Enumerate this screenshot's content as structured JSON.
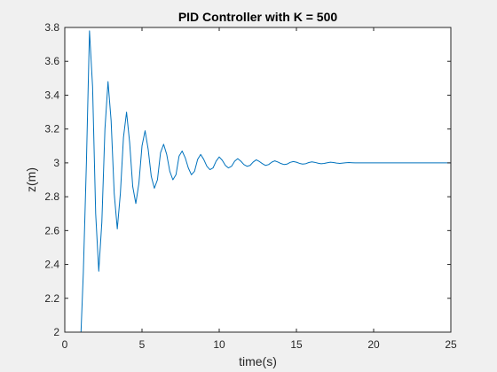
{
  "chart_data": {
    "type": "line",
    "title": "PID Controller with K = 500",
    "xlabel": "time(s)",
    "ylabel": "z(m)",
    "xlim": [
      0,
      25
    ],
    "ylim": [
      2,
      3.8
    ],
    "xticks": [
      "0",
      "5",
      "10",
      "15",
      "20",
      "25"
    ],
    "yticks": [
      "2",
      "2.2",
      "2.4",
      "2.6",
      "2.8",
      "3",
      "3.2",
      "3.4",
      "3.6",
      "3.8"
    ],
    "grid": false,
    "line_color": "#0072BD",
    "background_color": "#f0f0f0",
    "plot_color": "#ffffff",
    "series": [
      {
        "x": [
          0,
          0.2,
          0.4,
          0.6,
          0.8,
          1.0,
          1.05,
          1.2,
          1.4,
          1.6,
          1.8,
          2.0,
          2.2,
          2.4,
          2.6,
          2.8,
          3.0,
          3.2,
          3.4,
          3.6,
          3.8,
          4.0,
          4.2,
          4.4,
          4.6,
          4.8,
          5.0,
          5.2,
          5.4,
          5.6,
          5.8,
          6.0,
          6.2,
          6.4,
          6.6,
          6.8,
          7.0,
          7.2,
          7.4,
          7.6,
          7.8,
          8.0,
          8.2,
          8.4,
          8.6,
          8.8,
          9.0,
          9.2,
          9.4,
          9.6,
          9.8,
          10.0,
          10.2,
          10.4,
          10.6,
          10.8,
          11.0,
          11.2,
          11.4,
          11.6,
          11.8,
          12.0,
          12.2,
          12.4,
          12.6,
          12.8,
          13.0,
          13.2,
          13.4,
          13.6,
          13.8,
          14.0,
          14.2,
          14.4,
          14.6,
          14.8,
          15.0,
          15.2,
          15.4,
          15.6,
          15.8,
          16.0,
          16.2,
          16.4,
          16.6,
          16.8,
          17.0,
          17.2,
          17.4,
          17.6,
          17.8,
          18.0,
          18.2,
          18.4,
          18.6,
          18.8,
          19.0,
          20.0,
          21.0,
          22.0,
          23.0,
          24.0,
          25.0
        ],
        "values": [
          2.0,
          2.0,
          2.0,
          2.0,
          2.0,
          2.0,
          2.0,
          2.35,
          3.0,
          3.78,
          3.45,
          2.7,
          2.36,
          2.65,
          3.2,
          3.48,
          3.25,
          2.82,
          2.61,
          2.82,
          3.15,
          3.3,
          3.12,
          2.86,
          2.76,
          2.88,
          3.1,
          3.19,
          3.08,
          2.92,
          2.85,
          2.9,
          3.06,
          3.11,
          3.05,
          2.95,
          2.9,
          2.93,
          3.04,
          3.07,
          3.03,
          2.97,
          2.93,
          2.95,
          3.02,
          3.05,
          3.02,
          2.98,
          2.96,
          2.97,
          3.01,
          3.035,
          3.015,
          2.985,
          2.97,
          2.98,
          3.01,
          3.025,
          3.01,
          2.99,
          2.98,
          2.985,
          3.005,
          3.018,
          3.008,
          2.995,
          2.985,
          2.99,
          3.004,
          3.012,
          3.005,
          2.996,
          2.99,
          2.993,
          3.003,
          3.008,
          3.004,
          2.997,
          2.993,
          2.995,
          3.002,
          3.006,
          3.003,
          2.998,
          2.995,
          2.997,
          3.001,
          3.004,
          3.002,
          2.999,
          2.997,
          2.999,
          3.001,
          3.002,
          3.001,
          3.0,
          3.0,
          3.0,
          3.0,
          3.0,
          3.0,
          3.0,
          3.0
        ]
      }
    ]
  }
}
